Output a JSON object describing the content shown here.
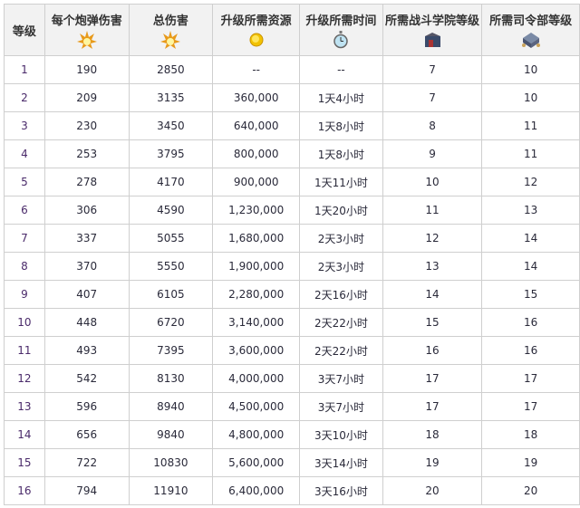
{
  "headers": [
    {
      "label": "等级",
      "icon": ""
    },
    {
      "label": "每个炮弹伤害",
      "icon": "explosion-icon"
    },
    {
      "label": "总伤害",
      "icon": "explosion-icon"
    },
    {
      "label": "升级所需资源",
      "icon": "gold-coin-icon"
    },
    {
      "label": "升级所需时间",
      "icon": "stopwatch-icon"
    },
    {
      "label": "所需战斗学院等级",
      "icon": "academy-building-icon"
    },
    {
      "label": "所需司令部等级",
      "icon": "headquarters-building-icon"
    }
  ],
  "rows": [
    [
      "1",
      "190",
      "2850",
      "--",
      "--",
      "7",
      "10"
    ],
    [
      "2",
      "209",
      "3135",
      "360,000",
      "1天4小时",
      "7",
      "10"
    ],
    [
      "3",
      "230",
      "3450",
      "640,000",
      "1天8小时",
      "8",
      "11"
    ],
    [
      "4",
      "253",
      "3795",
      "800,000",
      "1天8小时",
      "9",
      "11"
    ],
    [
      "5",
      "278",
      "4170",
      "900,000",
      "1天11小时",
      "10",
      "12"
    ],
    [
      "6",
      "306",
      "4590",
      "1,230,000",
      "1天20小时",
      "11",
      "13"
    ],
    [
      "7",
      "337",
      "5055",
      "1,680,000",
      "2天3小时",
      "12",
      "14"
    ],
    [
      "8",
      "370",
      "5550",
      "1,900,000",
      "2天3小时",
      "13",
      "14"
    ],
    [
      "9",
      "407",
      "6105",
      "2,280,000",
      "2天16小时",
      "14",
      "15"
    ],
    [
      "10",
      "448",
      "6720",
      "3,140,000",
      "2天22小时",
      "15",
      "16"
    ],
    [
      "11",
      "493",
      "7395",
      "3,600,000",
      "2天22小时",
      "16",
      "16"
    ],
    [
      "12",
      "542",
      "8130",
      "4,000,000",
      "3天7小时",
      "17",
      "17"
    ],
    [
      "13",
      "596",
      "8940",
      "4,500,000",
      "3天7小时",
      "17",
      "17"
    ],
    [
      "14",
      "656",
      "9840",
      "4,800,000",
      "3天10小时",
      "18",
      "18"
    ],
    [
      "15",
      "722",
      "10830",
      "5,600,000",
      "3天14小时",
      "19",
      "19"
    ],
    [
      "16",
      "794",
      "11910",
      "6,400,000",
      "3天16小时",
      "20",
      "20"
    ]
  ]
}
